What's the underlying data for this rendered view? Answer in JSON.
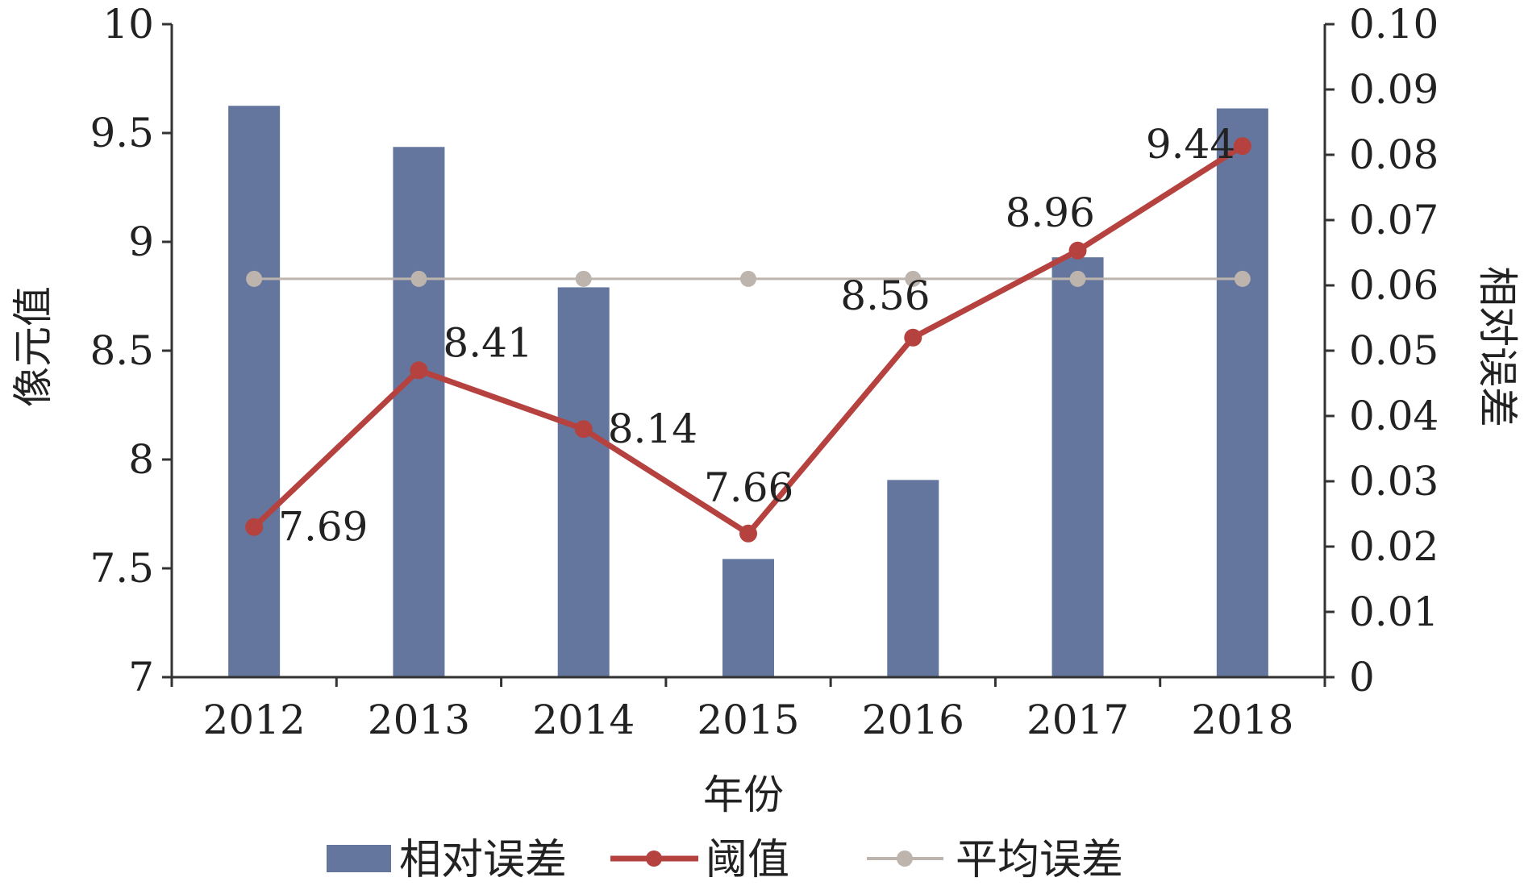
{
  "chart_data": {
    "type": "bar",
    "x_title": "年份",
    "y_left_title": "像元值",
    "y_right_title": "相对误差",
    "categories": [
      "2012",
      "2013",
      "2014",
      "2015",
      "2016",
      "2017",
      "2018"
    ],
    "y_left": {
      "min": 7,
      "max": 10,
      "ticks": [
        "7",
        "7.5",
        "8",
        "8.5",
        "9",
        "9.5",
        "10"
      ]
    },
    "y_right": {
      "min": 0,
      "max": 0.1,
      "ticks": [
        "0",
        "0.01",
        "0.02",
        "0.03",
        "0.04",
        "0.05",
        "0.06",
        "0.07",
        "0.08",
        "0.09",
        "0.10"
      ]
    },
    "series": [
      {
        "name": "相对误差",
        "kind": "bar",
        "axis": "right",
        "color": "#64769e",
        "values": [
          0.0875,
          0.0812,
          0.0597,
          0.0181,
          0.0302,
          0.0643,
          0.0871
        ]
      },
      {
        "name": "阈值",
        "kind": "line",
        "axis": "left",
        "color": "#b5423f",
        "values": [
          7.69,
          8.41,
          8.14,
          7.66,
          8.56,
          8.96,
          9.44
        ],
        "labels": [
          "7.69",
          "8.41",
          "8.14",
          "7.66",
          "8.56",
          "8.96",
          "9.44"
        ]
      },
      {
        "name": "平均误差",
        "kind": "line",
        "axis": "right",
        "color": "#bdb4ad",
        "values": [
          0.061,
          0.061,
          0.061,
          0.061,
          0.061,
          0.061,
          0.061
        ]
      }
    ],
    "legend_position": "bottom",
    "grid": false
  }
}
